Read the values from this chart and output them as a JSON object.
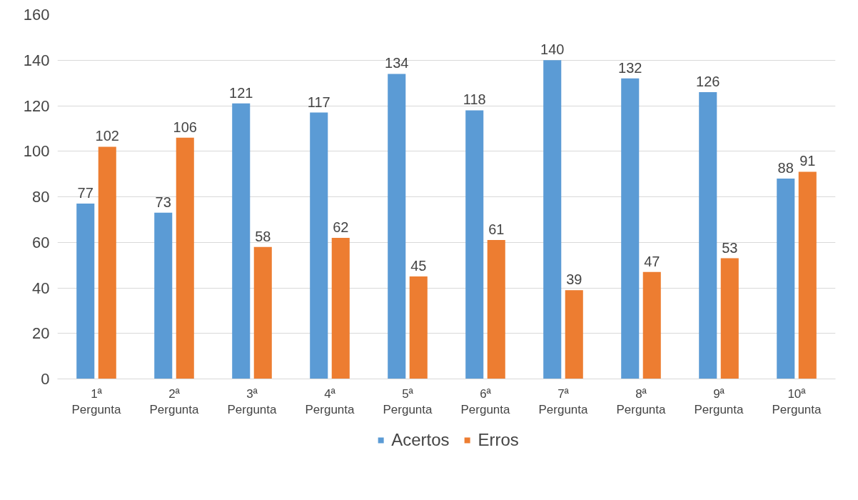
{
  "chart_data": {
    "type": "bar",
    "categories": [
      "1ª Pergunta",
      "2ª Pergunta",
      "3ª Pergunta",
      "4ª Pergunta",
      "5ª Pergunta",
      "6ª Pergunta",
      "7ª Pergunta",
      "8ª Pergunta",
      "9ª Pergunta",
      "10ª Pergunta"
    ],
    "series": [
      {
        "name": "Acertos",
        "color": "#5b9bd5",
        "values": [
          77,
          73,
          121,
          117,
          134,
          118,
          140,
          132,
          126,
          88
        ]
      },
      {
        "name": "Erros",
        "color": "#ed7d31",
        "values": [
          102,
          106,
          58,
          62,
          45,
          61,
          39,
          47,
          53,
          91
        ]
      }
    ],
    "ylim": [
      0,
      160
    ],
    "yticks": [
      0,
      20,
      40,
      60,
      80,
      100,
      120,
      140,
      160
    ],
    "grid": "y",
    "legend": "bottom",
    "data_labels": true
  }
}
